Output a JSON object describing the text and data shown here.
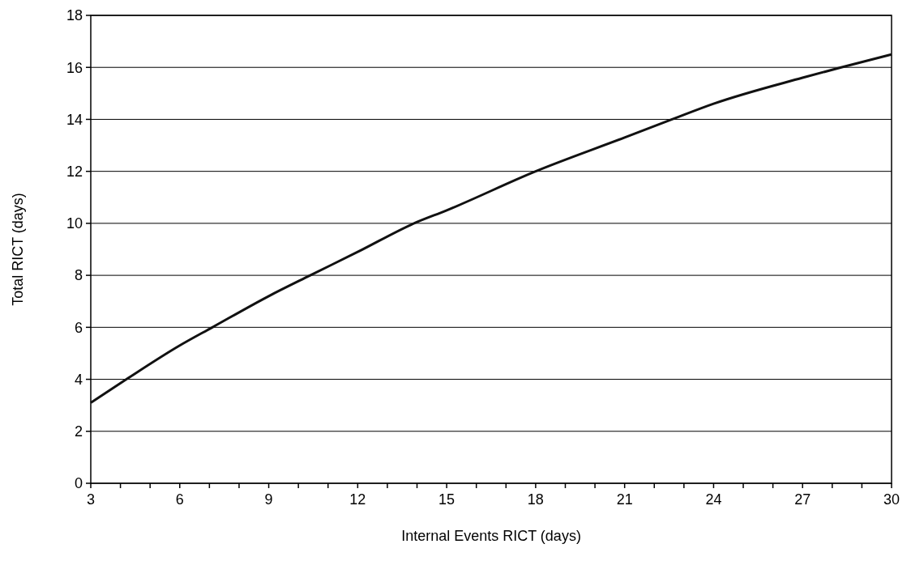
{
  "chart_data": {
    "type": "line",
    "xlabel": "Internal Events RICT (days)",
    "ylabel": "Total RICT (days)",
    "x": [
      3,
      4.2,
      6,
      7.1,
      9,
      10.4,
      12,
      13.9,
      15,
      18,
      21,
      22.6,
      24,
      27,
      28.3,
      30
    ],
    "series": [
      {
        "color": "#111111",
        "values": [
          3.1,
          4,
          5.3,
          6,
          7.2,
          8,
          8.9,
          10,
          10.5,
          12,
          13.3,
          14,
          14.6,
          15.6,
          16,
          16.5
        ]
      }
    ],
    "xlim": [
      3,
      30
    ],
    "xticks": [
      3,
      {
        "value": 4,
        "label": null
      },
      {
        "value": 5,
        "label": null
      },
      6,
      {
        "value": 7,
        "label": null
      },
      {
        "value": 8,
        "label": null
      },
      9,
      {
        "value": 10,
        "label": null
      },
      {
        "value": 11,
        "label": null
      },
      12,
      {
        "value": 13,
        "label": null
      },
      {
        "value": 14,
        "label": null
      },
      15,
      {
        "value": 16,
        "label": null
      },
      {
        "value": 17,
        "label": null
      },
      18,
      {
        "value": 19,
        "label": null
      },
      {
        "value": 20,
        "label": null
      },
      21,
      {
        "value": 22,
        "label": null
      },
      {
        "value": 23,
        "label": null
      },
      24,
      {
        "value": 25,
        "label": null
      },
      {
        "value": 26,
        "label": null
      },
      27,
      {
        "value": 28,
        "label": null
      },
      {
        "value": 29,
        "label": null
      },
      30
    ],
    "ylim": [
      0,
      18
    ],
    "yticks": [
      0,
      2,
      4,
      6,
      8,
      10,
      12,
      14,
      16,
      18
    ],
    "grid": "y",
    "marker": "none",
    "line_style": "solid"
  }
}
